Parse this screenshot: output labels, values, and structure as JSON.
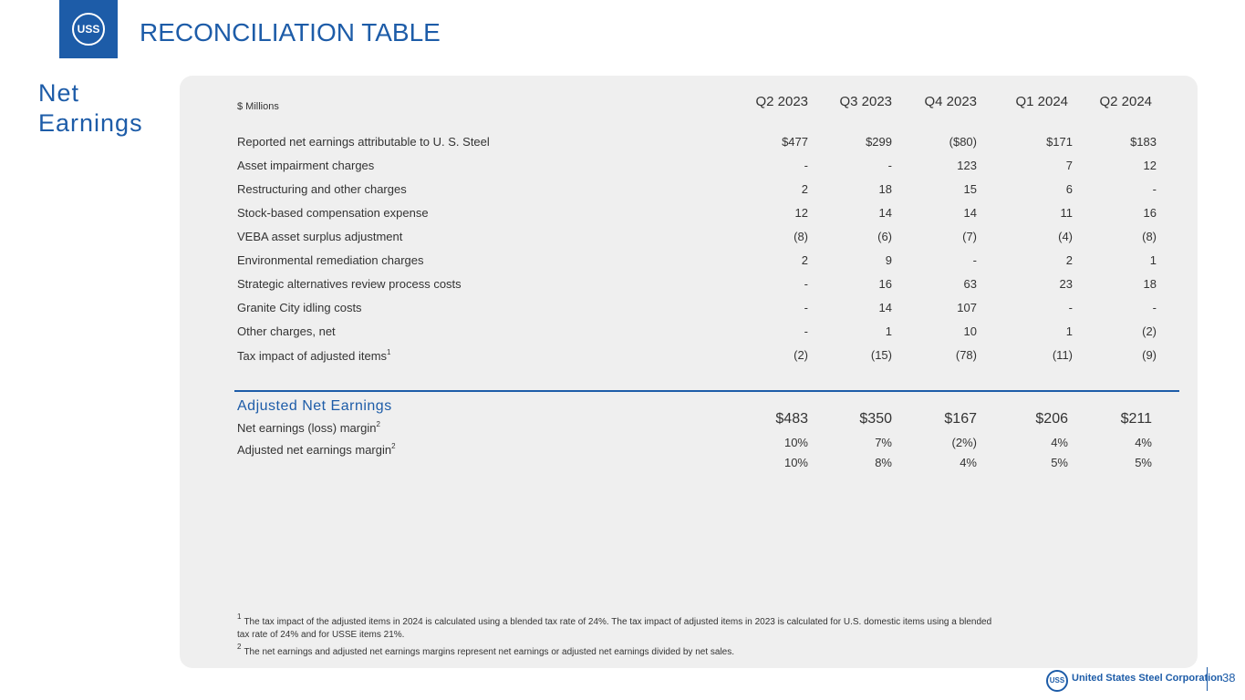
{
  "header": {
    "logo": "USS",
    "title": "RECONCILIATION TABLE"
  },
  "section": "Net Earnings",
  "table": {
    "unit": "$ Millions",
    "columns": [
      "Q2 2023",
      "Q3 2023",
      "Q4 2023",
      "Q1 2024",
      "Q2 2024"
    ],
    "rows": [
      {
        "label": "Reported net earnings attributable to U. S. Steel",
        "cells": [
          "$477",
          "$299",
          "($80)",
          "$171",
          "$183"
        ]
      },
      {
        "label": "Asset impairment charges",
        "cells": [
          "-",
          "-",
          "123",
          "7",
          "12"
        ]
      },
      {
        "label": "Restructuring and other charges",
        "cells": [
          "2",
          "18",
          "15",
          "6",
          "-"
        ]
      },
      {
        "label": "Stock-based compensation expense",
        "cells": [
          "12",
          "14",
          "14",
          "11",
          "16"
        ]
      },
      {
        "label": "VEBA asset surplus adjustment",
        "cells": [
          "(8)",
          "(6)",
          "(7)",
          "(4)",
          "(8)"
        ]
      },
      {
        "label": "Environmental remediation charges",
        "cells": [
          "2",
          "9",
          "-",
          "2",
          "1"
        ]
      },
      {
        "label": "Strategic alternatives review process costs",
        "cells": [
          "-",
          "16",
          "63",
          "23",
          "18"
        ]
      },
      {
        "label": "Granite City idling costs",
        "cells": [
          "-",
          "14",
          "107",
          "-",
          "-"
        ]
      },
      {
        "label": "Other charges, net",
        "cells": [
          "-",
          "1",
          "10",
          "1",
          "(2)"
        ]
      },
      {
        "label": "Tax impact of adjusted items",
        "sup": "1",
        "cells": [
          "(2)",
          "(15)",
          "(78)",
          "(11)",
          "(9)"
        ]
      }
    ],
    "total": {
      "label": "Adjusted Net Earnings",
      "cells": [
        "$483",
        "$350",
        "$167",
        "$206",
        "$211"
      ]
    },
    "margins": [
      {
        "label": "Net earnings (loss) margin",
        "sup": "2",
        "cells": [
          "10%",
          "7%",
          "(2%)",
          "4%",
          "4%"
        ]
      },
      {
        "label": "Adjusted net earnings margin",
        "sup": "2",
        "cells": [
          "10%",
          "8%",
          "4%",
          "5%",
          "5%"
        ]
      }
    ]
  },
  "footnotes": [
    {
      "mark": "1",
      "text": "The tax impact of the adjusted items in 2024 is calculated using a blended tax rate of 24%.  The tax impact of adjusted items in 2023 is calculated for U.S. domestic items using a blended tax rate of 24% and for USSE items 21%."
    },
    {
      "mark": "2",
      "text": "The net earnings and adjusted net earnings margins represent net earnings or adjusted net earnings divided by net sales."
    }
  ],
  "footer": {
    "company": "United States Steel Corporation",
    "page": "38"
  }
}
